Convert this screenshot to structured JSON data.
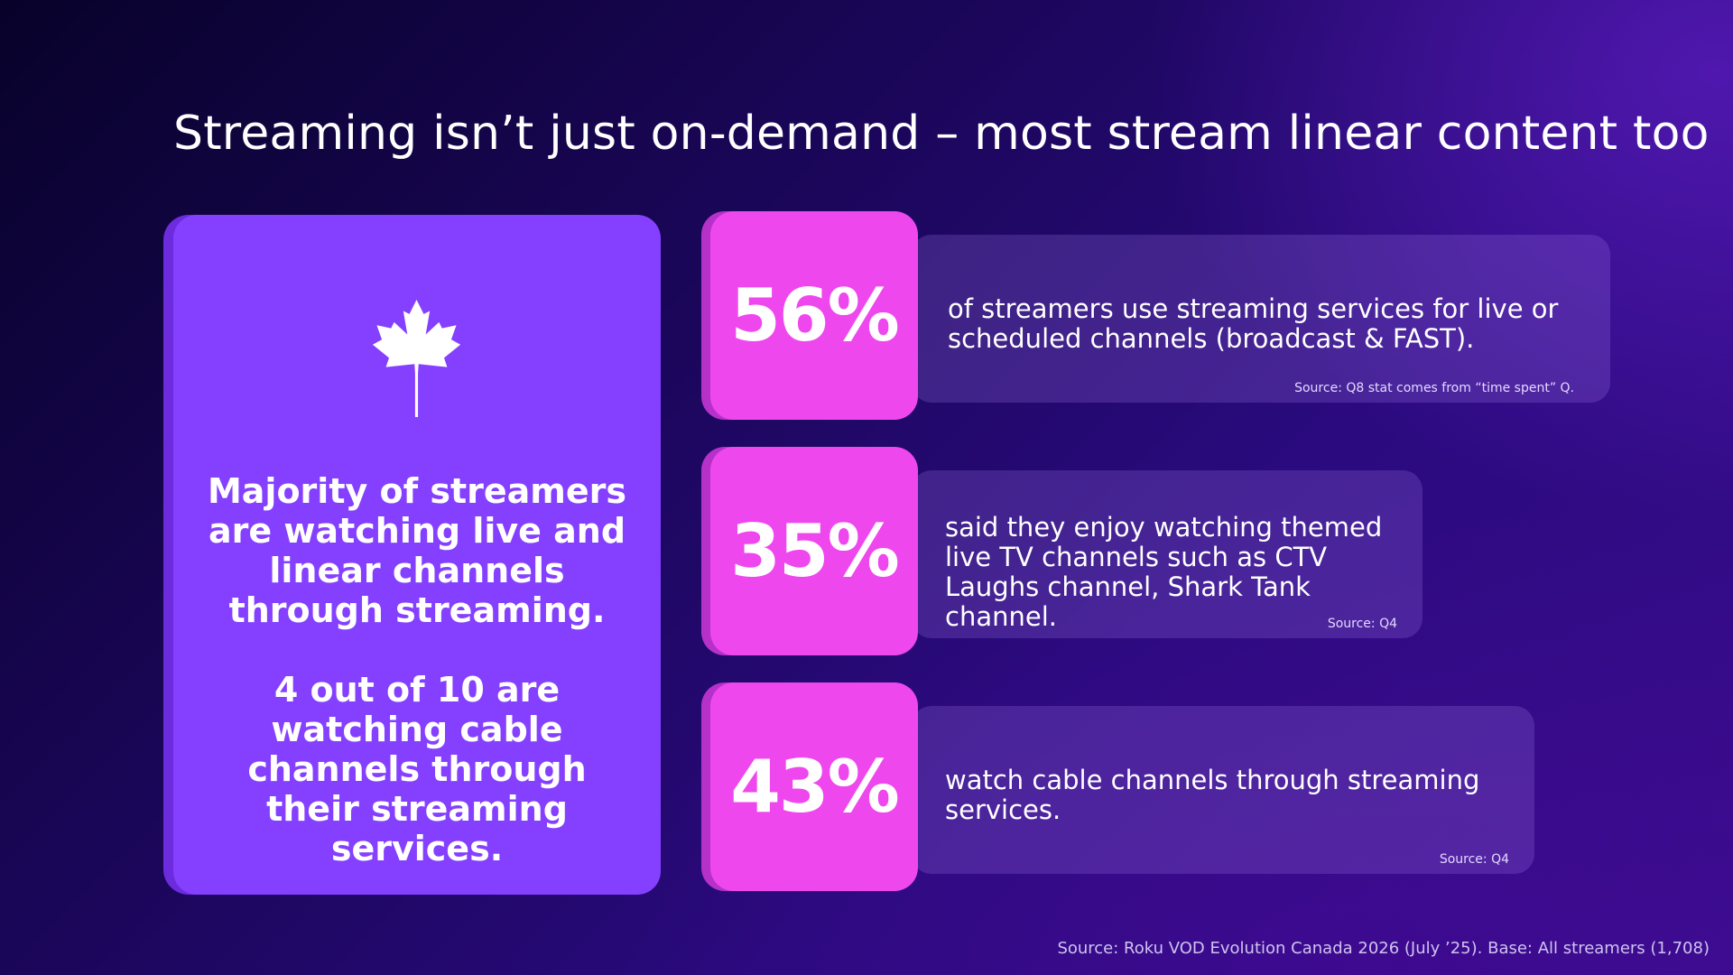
{
  "title": "Streaming isn’t just on-demand – most stream linear content too",
  "left_card": {
    "icon": "maple-leaf-icon",
    "paragraph_1": "Majority of streamers are watching live and linear channels through streaming.",
    "paragraph_2": "4 out of 10 are watching cable channels through their streaming services."
  },
  "stats": [
    {
      "value": "56%",
      "text": "of streamers use streaming services for live or scheduled channels (broadcast & FAST).",
      "source": "Source: Q8 stat comes from “time spent” Q."
    },
    {
      "value": "35%",
      "text": "said they enjoy watching themed live TV channels such as CTV Laughs channel, Shark Tank channel.",
      "source": "Source: Q4"
    },
    {
      "value": "43%",
      "text": "watch cable channels through streaming services.",
      "source": "Source: Q4"
    }
  ],
  "footer": "Source: Roku VOD Evolution Canada 2026 (July ’25). Base: All streamers (1,708)",
  "colors": {
    "card_purple": "#8540ff",
    "stat_pink": "#ef47ee",
    "background_dark": "#0a0330"
  }
}
